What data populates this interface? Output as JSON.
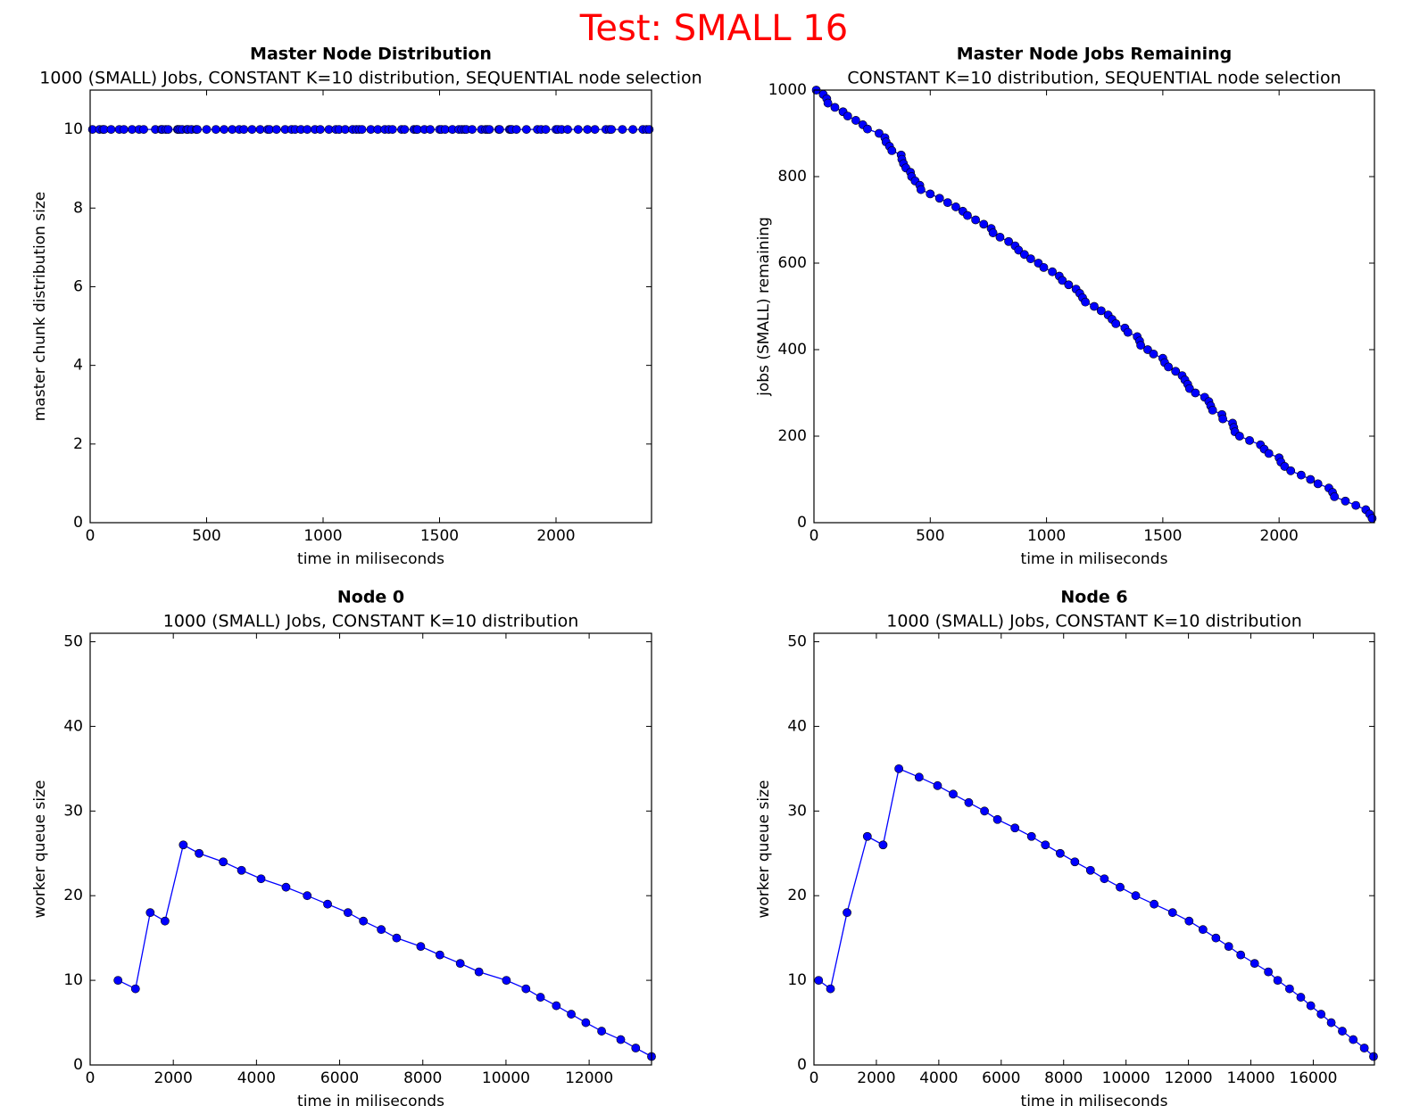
{
  "title": "Test: SMALL 16",
  "chart_data": [
    {
      "type": "line",
      "title": "Master Node Distribution",
      "subtitle": "1000 (SMALL) Jobs, CONSTANT K=10 distribution, SEQUENTIAL node selection",
      "xlabel": "time in miliseconds",
      "ylabel": "master chunk distribution size",
      "color": "#0000ff",
      "marker": "o",
      "xlim": [
        0,
        2410
      ],
      "xticks": [
        0,
        500,
        1000,
        1500,
        2000
      ],
      "ylim": [
        0,
        11
      ],
      "yticks": [
        0,
        2,
        4,
        6,
        8,
        10
      ],
      "x": [
        10,
        40,
        55,
        60,
        90,
        125,
        145,
        180,
        210,
        230,
        280,
        305,
        310,
        325,
        335,
        375,
        378,
        385,
        395,
        415,
        420,
        435,
        455,
        460,
        500,
        540,
        575,
        610,
        640,
        660,
        695,
        730,
        762,
        770,
        800,
        837,
        865,
        880,
        905,
        932,
        965,
        988,
        1025,
        1055,
        1068,
        1095,
        1127,
        1143,
        1155,
        1167,
        1205,
        1235,
        1265,
        1282,
        1298,
        1337,
        1350,
        1390,
        1400,
        1405,
        1435,
        1460,
        1500,
        1508,
        1524,
        1555,
        1583,
        1595,
        1607,
        1615,
        1640,
        1680,
        1698,
        1706,
        1714,
        1754,
        1758,
        1800,
        1805,
        1810,
        1830,
        1873,
        1920,
        1936,
        1956,
        2000,
        2008,
        2024,
        2050,
        2095,
        2135,
        2167,
        2214,
        2230,
        2238,
        2285,
        2330,
        2373,
        2389,
        2400
      ],
      "values": [
        10,
        10,
        10,
        10,
        10,
        10,
        10,
        10,
        10,
        10,
        10,
        10,
        10,
        10,
        10,
        10,
        10,
        10,
        10,
        10,
        10,
        10,
        10,
        10,
        10,
        10,
        10,
        10,
        10,
        10,
        10,
        10,
        10,
        10,
        10,
        10,
        10,
        10,
        10,
        10,
        10,
        10,
        10,
        10,
        10,
        10,
        10,
        10,
        10,
        10,
        10,
        10,
        10,
        10,
        10,
        10,
        10,
        10,
        10,
        10,
        10,
        10,
        10,
        10,
        10,
        10,
        10,
        10,
        10,
        10,
        10,
        10,
        10,
        10,
        10,
        10,
        10,
        10,
        10,
        10,
        10,
        10,
        10,
        10,
        10,
        10,
        10,
        10,
        10,
        10,
        10,
        10,
        10,
        10,
        10,
        10,
        10,
        10,
        10,
        10
      ]
    },
    {
      "type": "line",
      "title": "Master Node Jobs Remaining",
      "subtitle": "CONSTANT K=10 distribution, SEQUENTIAL node selection",
      "xlabel": "time in miliseconds",
      "ylabel": "jobs (SMALL) remaining",
      "color": "#0000ff",
      "marker": "o",
      "xlim": [
        0,
        2410
      ],
      "xticks": [
        0,
        500,
        1000,
        1500,
        2000
      ],
      "ylim": [
        0,
        1000
      ],
      "yticks": [
        0,
        200,
        400,
        600,
        800,
        1000
      ],
      "x": [
        10,
        40,
        55,
        60,
        90,
        125,
        145,
        180,
        210,
        230,
        280,
        305,
        310,
        325,
        335,
        375,
        378,
        385,
        395,
        415,
        420,
        435,
        455,
        460,
        500,
        540,
        575,
        610,
        640,
        660,
        695,
        730,
        762,
        770,
        800,
        837,
        865,
        880,
        905,
        932,
        965,
        988,
        1025,
        1055,
        1068,
        1095,
        1127,
        1143,
        1155,
        1167,
        1205,
        1235,
        1265,
        1282,
        1298,
        1337,
        1350,
        1390,
        1400,
        1405,
        1435,
        1460,
        1500,
        1508,
        1524,
        1555,
        1583,
        1595,
        1607,
        1615,
        1640,
        1680,
        1698,
        1706,
        1714,
        1754,
        1758,
        1800,
        1805,
        1810,
        1830,
        1873,
        1920,
        1936,
        1956,
        2000,
        2008,
        2024,
        2050,
        2095,
        2135,
        2167,
        2214,
        2230,
        2238,
        2285,
        2330,
        2373,
        2389,
        2400
      ],
      "values": [
        1000,
        990,
        980,
        970,
        960,
        950,
        940,
        930,
        920,
        910,
        900,
        890,
        880,
        870,
        860,
        850,
        840,
        830,
        820,
        810,
        800,
        790,
        780,
        770,
        760,
        750,
        740,
        730,
        720,
        710,
        700,
        690,
        680,
        670,
        660,
        650,
        640,
        630,
        620,
        610,
        600,
        590,
        580,
        570,
        560,
        550,
        540,
        530,
        520,
        510,
        500,
        490,
        480,
        470,
        460,
        450,
        440,
        430,
        420,
        410,
        400,
        390,
        380,
        370,
        360,
        350,
        340,
        330,
        320,
        310,
        300,
        290,
        280,
        270,
        260,
        250,
        240,
        230,
        220,
        210,
        200,
        190,
        180,
        170,
        160,
        150,
        140,
        130,
        120,
        110,
        100,
        90,
        80,
        70,
        60,
        50,
        40,
        30,
        20,
        10
      ]
    },
    {
      "type": "line",
      "title": "Node 0",
      "subtitle": "1000 (SMALL) Jobs, CONSTANT K=10 distribution",
      "xlabel": "time in miliseconds",
      "ylabel": "worker queue size",
      "color": "#0000ff",
      "marker": "o",
      "xlim": [
        0,
        13500
      ],
      "xticks": [
        0,
        2000,
        4000,
        6000,
        8000,
        10000,
        12000
      ],
      "ylim": [
        0,
        51
      ],
      "yticks": [
        0,
        10,
        20,
        30,
        40,
        50
      ],
      "x": [
        670,
        1090,
        1445,
        1800,
        2240,
        2620,
        3200,
        3640,
        4110,
        4710,
        5220,
        5710,
        6200,
        6570,
        7000,
        7370,
        7950,
        8410,
        8900,
        9350,
        10010,
        10480,
        10830,
        11210,
        11570,
        11920,
        12300,
        12760,
        13120,
        13500
      ],
      "values": [
        10,
        9,
        18,
        17,
        26,
        25,
        24,
        23,
        22,
        21,
        20,
        19,
        18,
        17,
        16,
        15,
        14,
        13,
        12,
        11,
        10,
        9,
        8,
        7,
        6,
        5,
        4,
        3,
        2,
        1
      ]
    },
    {
      "type": "line",
      "title": "Node 6",
      "subtitle": "1000 (SMALL) Jobs, CONSTANT K=10 distribution",
      "xlabel": "time in miliseconds",
      "ylabel": "worker queue size",
      "color": "#0000ff",
      "marker": "o",
      "xlim": [
        0,
        17960
      ],
      "xticks": [
        0,
        2000,
        4000,
        6000,
        8000,
        10000,
        12000,
        14000,
        16000
      ],
      "ylim": [
        0,
        51
      ],
      "yticks": [
        0,
        10,
        20,
        30,
        40,
        50
      ],
      "x": [
        150,
        530,
        1060,
        1710,
        2215,
        2720,
        3370,
        3960,
        4460,
        4960,
        5465,
        5880,
        6440,
        6970,
        7415,
        7890,
        8360,
        8860,
        9305,
        9810,
        10310,
        10900,
        11490,
        12020,
        12465,
        12880,
        13290,
        13675,
        14120,
        14560,
        14860,
        15240,
        15600,
        15920,
        16250,
        16575,
        16930,
        17280,
        17635,
        17930
      ],
      "values": [
        10,
        9,
        18,
        27,
        26,
        35,
        34,
        33,
        32,
        31,
        30,
        29,
        28,
        27,
        26,
        25,
        24,
        23,
        22,
        21,
        20,
        19,
        18,
        17,
        16,
        15,
        14,
        13,
        12,
        11,
        10,
        9,
        8,
        7,
        6,
        5,
        4,
        3,
        2,
        1
      ]
    }
  ]
}
